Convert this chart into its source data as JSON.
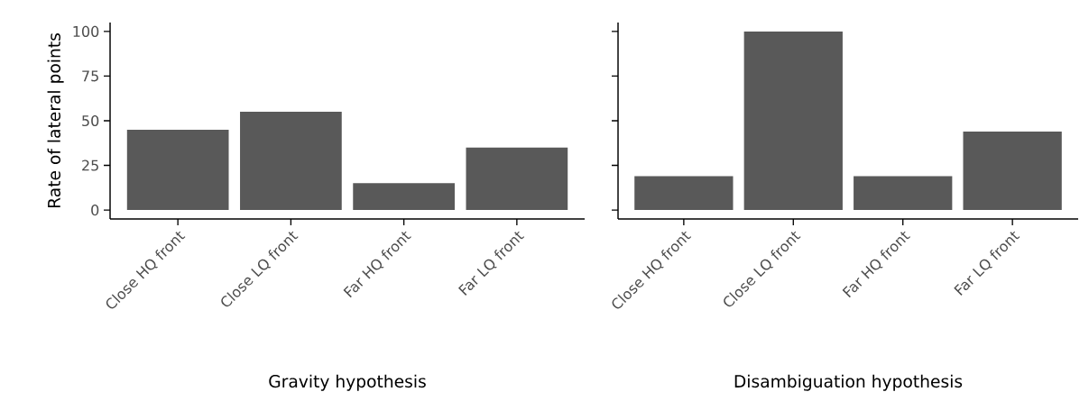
{
  "chart_data": [
    {
      "type": "bar",
      "categories": [
        "Close HQ front",
        "Close LQ front",
        "Far HQ front",
        "Far LQ front"
      ],
      "values": [
        45,
        55,
        15,
        35
      ],
      "color": "#595959",
      "ylim": [
        -5,
        105
      ],
      "yticks": [
        0,
        25,
        50,
        75,
        100
      ],
      "xlabel": "Gravity hypothesis",
      "ylabel": "Rate of lateral points"
    },
    {
      "type": "bar",
      "categories": [
        "Close HQ front",
        "Close LQ front",
        "Far HQ front",
        "Far LQ front"
      ],
      "values": [
        19,
        100,
        19,
        44
      ],
      "color": "#595959",
      "ylim": [
        -5,
        105
      ],
      "yticks": [
        0,
        25,
        50,
        75,
        100
      ],
      "xlabel": "Disambiguation hypothesis",
      "tick_labels": "x"
    }
  ]
}
